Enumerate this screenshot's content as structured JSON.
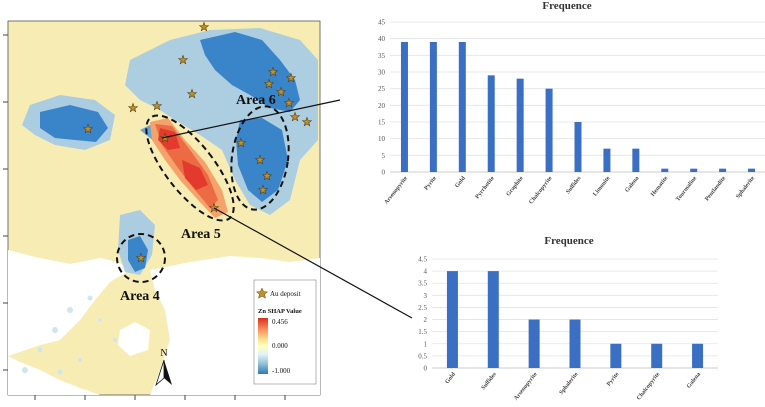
{
  "map": {
    "area_labels": [
      "Area 6",
      "Area 5",
      "Area 4"
    ],
    "legend": {
      "deposit_label": "Au deposit",
      "title": "Zn SHAP Value",
      "max": "0.456",
      "mid": "0.000",
      "min": "-1.000",
      "colors": [
        "#d7301f",
        "#fc8d59",
        "#fee090",
        "#ffffbf",
        "#e0f3f8",
        "#91bfdb",
        "#2c7bb6"
      ]
    },
    "north_label": "N",
    "colors": {
      "background": "#f7edb4",
      "blue": "#3a84c9",
      "light_blue": "#a9cbe4",
      "red": "#e23a2c",
      "deposit": "#c0902a"
    }
  },
  "chart_data": [
    {
      "type": "bar",
      "title": "Frequence",
      "categories": [
        "Arsenopyrite",
        "Pyrite",
        "Gold",
        "Pyrrhotite",
        "Graphite",
        "Chalcopyrite",
        "Sulfides",
        "Limonite",
        "Galena",
        "Hematite",
        "Tourmaline",
        "Pentlandite",
        "Sphalerite"
      ],
      "values": [
        39,
        39,
        39,
        29,
        28,
        25,
        15,
        7,
        7,
        1,
        1,
        1,
        1
      ],
      "ylim": [
        0,
        45
      ],
      "yticks": [
        "0",
        "5",
        "10",
        "15",
        "20",
        "25",
        "30",
        "35",
        "40",
        "45"
      ],
      "color": "#3b6fc4"
    },
    {
      "type": "bar",
      "title": "Frequence",
      "categories": [
        "Gold",
        "Sulfides",
        "Arsenopyrite",
        "Sphalerite",
        "Pyrite",
        "Chalcopyrite",
        "Galena"
      ],
      "values": [
        4,
        4,
        2,
        2,
        1,
        1,
        1
      ],
      "ylim": [
        0,
        4.5
      ],
      "yticks": [
        "0",
        "0.5",
        "1",
        "1.5",
        "2",
        "2.5",
        "3",
        "3.5",
        "4",
        "4.5"
      ],
      "color": "#3b6fc4"
    }
  ]
}
